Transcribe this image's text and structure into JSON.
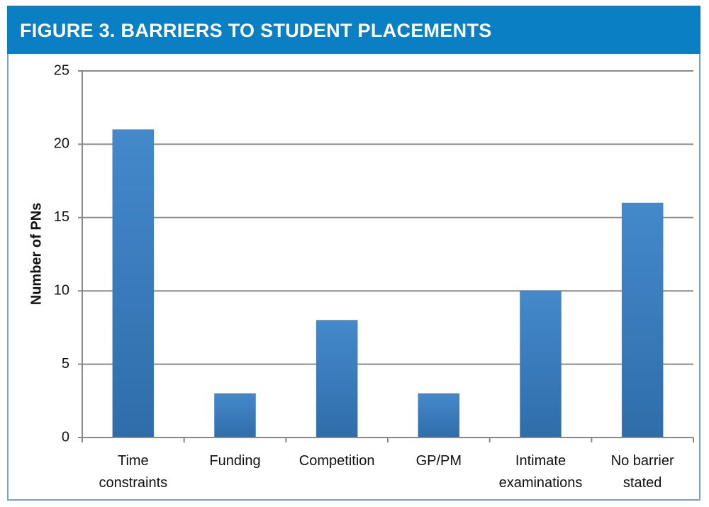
{
  "chart_data": {
    "type": "bar",
    "title": "FIGURE 3. BARRIERS TO STUDENT PLACEMENTS",
    "y_label": "Number of PNs",
    "categories": [
      "Time constraints",
      "Funding",
      "Competition",
      "GP/PM",
      "Intimate examinations",
      "No barrier stated"
    ],
    "values": [
      21,
      3,
      8,
      3,
      10,
      16
    ],
    "color": "#3a7bbf",
    "ylim": [
      0,
      25
    ],
    "yticks": [
      0,
      5,
      10,
      15,
      20,
      25
    ],
    "grid": true
  }
}
